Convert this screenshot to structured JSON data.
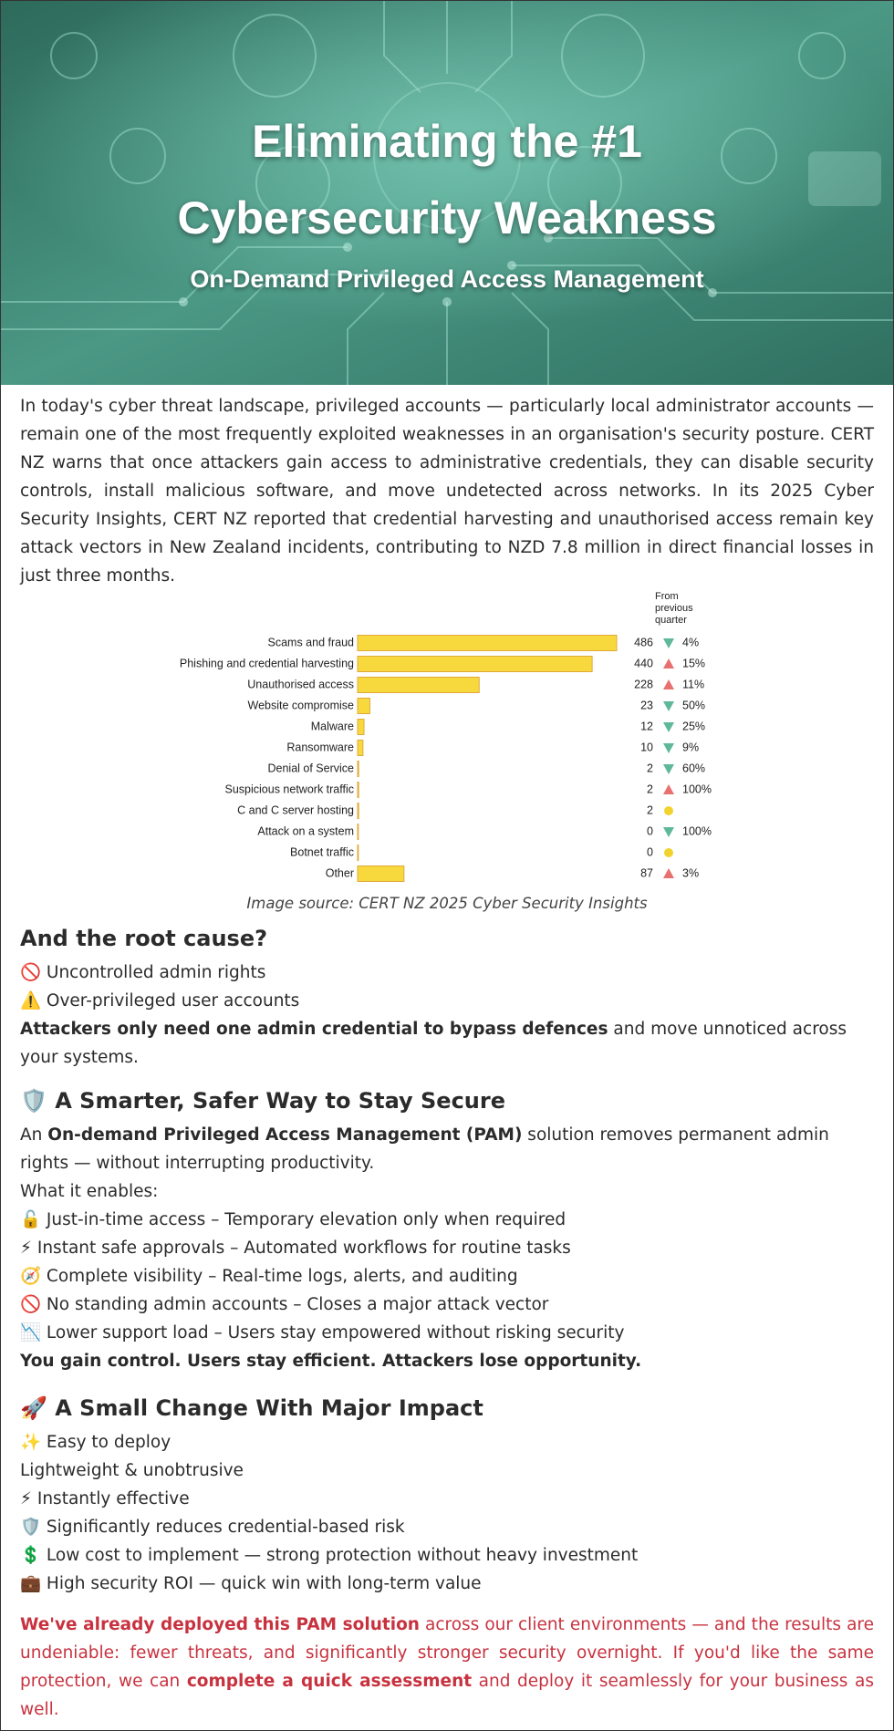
{
  "header": {
    "title": "Eliminating the #1 Cybersecurity Weakness",
    "subtitle": "On-Demand Privileged Access Management"
  },
  "intro": "In today's cyber threat landscape, privileged accounts — particularly local administrator accounts — remain one of the most frequently exploited weaknesses in an organisation's security posture. CERT NZ warns that once attackers gain access to administrative credentials, they can disable security controls, install malicious software, and move undetected across networks. In its 2025 Cyber Security Insights, CERT NZ reported that credential harvesting and unauthorised access remain key attack vectors in New Zealand incidents, contributing to NZD 7.8 million in direct financial losses in just three months.",
  "chart_data": {
    "type": "bar",
    "orientation": "horizontal",
    "color": "#f7d93e",
    "edge_color": "#e0a93a",
    "categories": [
      "Scams and fraud",
      "Phishing and credential harvesting",
      "Unauthorised access",
      "Website compromise",
      "Malware",
      "Ransomware",
      "Denial of Service",
      "Suspicious network traffic",
      "C and C server hosting",
      "Attack on a system",
      "Botnet traffic",
      "Other"
    ],
    "values": [
      486,
      440,
      228,
      23,
      12,
      10,
      2,
      2,
      2,
      0,
      0,
      87
    ],
    "change": {
      "title": "From previous quarter",
      "values": [
        4,
        15,
        11,
        50,
        25,
        9,
        60,
        100,
        null,
        100,
        null,
        3
      ],
      "value_labels": [
        "4%",
        "15%",
        "11%",
        "50%",
        "25%",
        "9%",
        "60%",
        "100%",
        null,
        "100%",
        null,
        "3%"
      ],
      "directions": [
        "down",
        "up",
        "up",
        "down",
        "down",
        "down",
        "down",
        "up",
        "flat",
        "down",
        "flat",
        "up"
      ],
      "colors": {
        "up": "#e8716f",
        "down": "#5fb89a",
        "flat": "#f2d22e"
      }
    }
  },
  "caption": "Image source: CERT NZ 2025 Cyber Security Insights",
  "root_cause": {
    "heading": "And the root cause?",
    "items": [
      "🚫 Uncontrolled admin rights",
      "⚠️ Over-privileged user accounts"
    ],
    "summary": [
      {
        "text": "Attackers only need one admin credential to bypass defences",
        "bold": true
      },
      {
        "text": " and move unnoticed across your systems.",
        "bold": false
      }
    ]
  },
  "smarter": {
    "heading": "🛡️ A Smarter, Safer Way to Stay Secure",
    "lead": [
      {
        "text": "An ",
        "bold": false
      },
      {
        "text": "On-demand Privileged Access Management (PAM)",
        "bold": true
      },
      {
        "text": " solution removes permanent admin rights — without interrupting productivity.",
        "bold": false
      }
    ],
    "enables": "What it enables:",
    "items": [
      "🔓 Just-in-time access – Temporary elevation only when required",
      "⚡ Instant safe approvals – Automated workflows for routine tasks",
      "🧭 Complete visibility – Real-time logs, alerts, and auditing",
      "🚫 No standing admin accounts – Closes a major attack vector",
      "📉 Lower support load – Users stay empowered without risking security"
    ],
    "summary": "You gain control. Users stay efficient. Attackers lose opportunity."
  },
  "impact": {
    "heading": "🚀  A Small Change With Major Impact",
    "items": [
      "✨ Easy to deploy",
      " Lightweight & unobtrusive",
      "⚡ Instantly effective",
      "🛡️ Significantly reduces credential-based risk",
      "💲 Low cost to implement — strong protection without heavy investment",
      "💼 High security ROI — quick win with long-term value"
    ]
  },
  "closing": [
    {
      "text": "We've already deployed this PAM solution",
      "bold": true
    },
    {
      "text": " across our client environments — and the results are undeniable: fewer threats, and significantly stronger security overnight. If you'd like the same protection, we can ",
      "bold": false
    },
    {
      "text": "complete a quick assessment",
      "bold": true
    },
    {
      "text": " and deploy it seamlessly for your business as well.",
      "bold": false
    }
  ]
}
